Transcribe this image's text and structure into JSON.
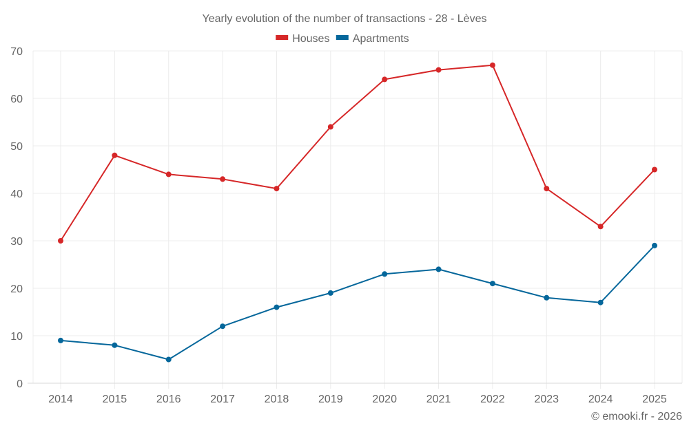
{
  "chart_data": {
    "type": "line",
    "title": "Yearly evolution of the number of transactions - 28 - Lèves",
    "xlabel": "",
    "ylabel": "",
    "x": [
      "2014",
      "2015",
      "2016",
      "2017",
      "2018",
      "2019",
      "2020",
      "2021",
      "2022",
      "2023",
      "2024",
      "2025"
    ],
    "ylim": [
      0,
      70
    ],
    "yticks": [
      "0",
      "10",
      "20",
      "30",
      "40",
      "50",
      "60",
      "70"
    ],
    "grid": true,
    "legend_position": "top-center",
    "series": [
      {
        "name": "Houses",
        "color": "#d62728",
        "values": [
          30,
          48,
          44,
          43,
          41,
          54,
          64,
          66,
          67,
          41,
          33,
          45
        ]
      },
      {
        "name": "Apartments",
        "color": "#05679b",
        "values": [
          9,
          8,
          5,
          12,
          16,
          19,
          23,
          24,
          21,
          18,
          17,
          29
        ]
      }
    ],
    "credit": "© emooki.fr - 2026"
  }
}
